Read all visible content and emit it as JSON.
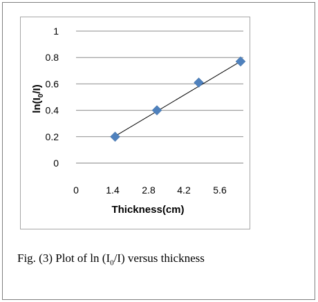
{
  "chart_data": {
    "type": "scatter",
    "xlabel": "Thickness(cm)",
    "ylabel_parts": [
      "ln(I",
      "0",
      "/I)"
    ],
    "x_ticks": [
      "0",
      "1.4",
      "2.8",
      "4.2",
      "5.6"
    ],
    "y_ticks": [
      "0",
      "0.2",
      "0.4",
      "0.6",
      "0.8",
      "1"
    ],
    "xlim": [
      0,
      5.6
    ],
    "ylim": [
      0,
      1
    ],
    "grid": "horizontal",
    "trendline": true,
    "marker": "diamond",
    "colors": {
      "marker": "#4f81bd",
      "line": "#000000",
      "grid": "#8c8c8c"
    },
    "series": [
      {
        "x": [
          1.4,
          2.8,
          4.2,
          5.6
        ],
        "y": [
          0.2,
          0.4,
          0.61,
          0.77
        ]
      }
    ]
  },
  "caption": {
    "prefix": "Fig. (3) Plot of ln (I",
    "sub": "0",
    "suffix": "/I) versus thickness"
  }
}
